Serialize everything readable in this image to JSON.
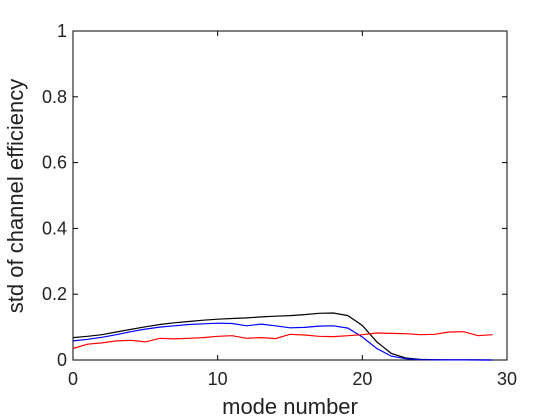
{
  "chart_data": {
    "type": "line",
    "title": "",
    "xlabel": "mode number",
    "ylabel": "std of channel efficiency",
    "xlim": [
      0,
      30
    ],
    "ylim": [
      0,
      1
    ],
    "xticks": [
      0,
      10,
      20,
      30
    ],
    "yticks": [
      0,
      0.2,
      0.4,
      0.6,
      0.8,
      1
    ],
    "ytick_labels": [
      "0",
      "0.2",
      "0.4",
      "0.6",
      "0.8",
      "1"
    ],
    "grid": false,
    "legend": "none",
    "x": [
      0,
      1,
      2,
      3,
      4,
      5,
      6,
      7,
      8,
      9,
      10,
      11,
      12,
      13,
      14,
      15,
      16,
      17,
      18,
      19,
      20,
      21,
      22,
      23,
      24,
      25,
      26,
      27,
      28,
      29
    ],
    "series": [
      {
        "color": "#000000",
        "values": [
          0.068,
          0.072,
          0.077,
          0.085,
          0.093,
          0.101,
          0.108,
          0.113,
          0.117,
          0.121,
          0.124,
          0.126,
          0.128,
          0.131,
          0.133,
          0.135,
          0.138,
          0.142,
          0.143,
          0.135,
          0.105,
          0.055,
          0.02,
          0.006,
          0.002,
          0.001,
          0.0005,
          0.0003,
          0.0002,
          0.0001
        ]
      },
      {
        "color": "#0000ff",
        "values": [
          0.058,
          0.063,
          0.069,
          0.077,
          0.086,
          0.094,
          0.1,
          0.104,
          0.108,
          0.11,
          0.112,
          0.111,
          0.104,
          0.109,
          0.104,
          0.098,
          0.099,
          0.103,
          0.104,
          0.097,
          0.07,
          0.035,
          0.012,
          0.004,
          0.001,
          0.0005,
          0.0003,
          0.0002,
          0.0001,
          0.0001
        ]
      },
      {
        "color": "#ff0000",
        "values": [
          0.035,
          0.048,
          0.052,
          0.058,
          0.06,
          0.055,
          0.066,
          0.064,
          0.066,
          0.068,
          0.072,
          0.074,
          0.066,
          0.068,
          0.065,
          0.078,
          0.076,
          0.072,
          0.071,
          0.074,
          0.077,
          0.082,
          0.081,
          0.08,
          0.077,
          0.078,
          0.085,
          0.086,
          0.074,
          0.077
        ]
      }
    ]
  }
}
